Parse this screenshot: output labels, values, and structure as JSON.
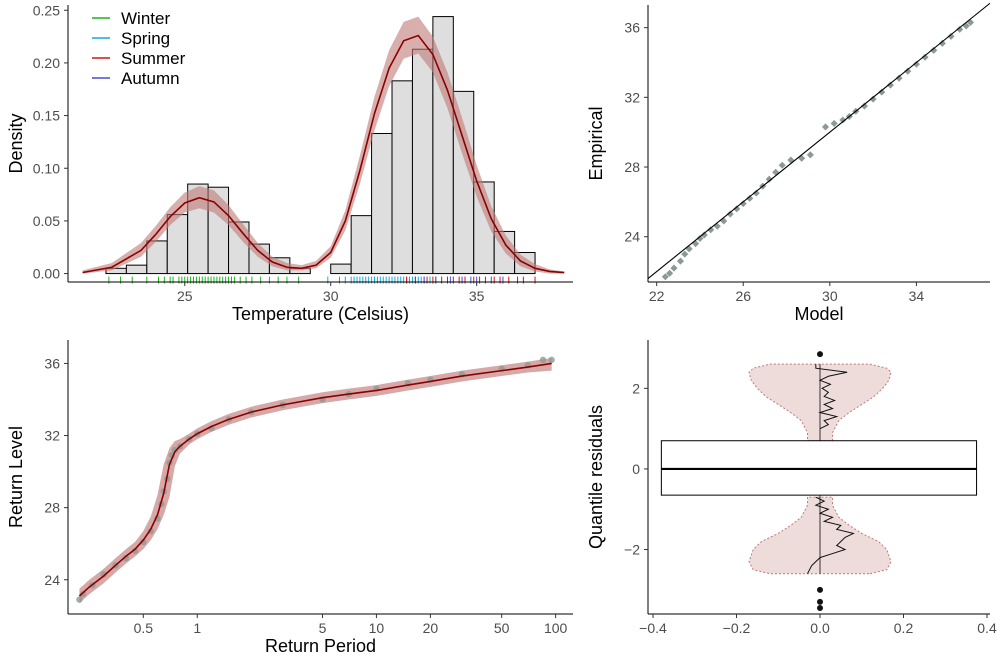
{
  "colors": {
    "winter": "#1fb21f",
    "spring": "#1aa6d8",
    "summer": "#d01717",
    "autumn": "#4a4ad8",
    "fit_line": "#8b0000",
    "band": "#c07a78",
    "bar_fill": "#dedede",
    "point": "#8c9a94"
  },
  "chart_data": [
    {
      "id": "density",
      "type": "bar",
      "xlabel": "Temperature (Celsius)",
      "ylabel": "Density",
      "xlim": [
        21.0,
        38.3
      ],
      "ylim": [
        -0.008,
        0.255
      ],
      "x_ticks": [
        25,
        30,
        35
      ],
      "y_ticks": [
        0.0,
        0.05,
        0.1,
        0.15,
        0.2,
        0.25
      ],
      "y_tick_labels": [
        "0.00",
        "0.05",
        "0.10",
        "0.15",
        "0.20",
        "0.25"
      ],
      "legend": [
        "Winter",
        "Spring",
        "Summer",
        "Autumn"
      ],
      "legend_position": "top-left",
      "histogram": {
        "bin_edges": [
          22.3,
          23.0,
          23.7,
          24.4,
          25.1,
          25.8,
          26.5,
          27.2,
          27.9,
          28.6,
          29.3,
          30.0,
          30.7,
          31.4,
          32.1,
          32.8,
          33.5,
          34.2,
          34.9,
          35.6,
          36.3,
          37.0
        ],
        "densities": [
          0.005,
          0.008,
          0.031,
          0.056,
          0.085,
          0.082,
          0.049,
          0.028,
          0.015,
          0.005,
          0.0,
          0.009,
          0.055,
          0.133,
          0.183,
          0.213,
          0.244,
          0.173,
          0.087,
          0.04,
          0.02
        ]
      },
      "density_curve": {
        "x": [
          21.5,
          22.5,
          23.5,
          24.0,
          24.5,
          25.0,
          25.5,
          26.0,
          26.5,
          27.0,
          27.5,
          28.0,
          28.5,
          29.0,
          29.5,
          30.0,
          30.5,
          31.0,
          31.5,
          32.0,
          32.5,
          33.0,
          33.5,
          34.0,
          34.5,
          35.0,
          35.5,
          36.0,
          36.5,
          37.0,
          37.5,
          38.0
        ],
        "y": [
          0.001,
          0.006,
          0.022,
          0.037,
          0.054,
          0.067,
          0.072,
          0.068,
          0.055,
          0.038,
          0.022,
          0.011,
          0.006,
          0.005,
          0.008,
          0.02,
          0.05,
          0.098,
          0.152,
          0.195,
          0.221,
          0.226,
          0.208,
          0.174,
          0.131,
          0.088,
          0.052,
          0.027,
          0.012,
          0.005,
          0.002,
          0.001
        ],
        "lower": [
          0.0,
          0.003,
          0.016,
          0.03,
          0.046,
          0.058,
          0.062,
          0.058,
          0.046,
          0.03,
          0.016,
          0.007,
          0.003,
          0.003,
          0.005,
          0.015,
          0.041,
          0.085,
          0.136,
          0.178,
          0.204,
          0.209,
          0.191,
          0.157,
          0.114,
          0.073,
          0.04,
          0.019,
          0.007,
          0.002,
          0.0,
          0.0
        ],
        "upper": [
          0.003,
          0.01,
          0.029,
          0.045,
          0.063,
          0.077,
          0.083,
          0.079,
          0.065,
          0.047,
          0.029,
          0.016,
          0.01,
          0.008,
          0.012,
          0.026,
          0.06,
          0.112,
          0.168,
          0.212,
          0.239,
          0.244,
          0.225,
          0.191,
          0.148,
          0.103,
          0.064,
          0.036,
          0.018,
          0.009,
          0.004,
          0.002
        ]
      },
      "rug": {
        "winter": [
          22.4,
          22.8,
          23.2,
          23.7,
          24.1,
          24.3,
          24.5,
          24.6,
          24.8,
          24.9,
          25.0,
          25.1,
          25.2,
          25.3,
          25.4,
          25.5,
          25.6,
          25.7,
          25.8,
          25.9,
          26.0,
          26.1,
          26.2,
          26.3,
          26.4,
          26.5,
          26.6,
          26.7,
          26.9,
          27.1,
          27.3,
          27.6,
          27.9,
          28.2,
          28.5,
          28.9
        ],
        "spring": [
          29.9,
          30.3,
          30.5,
          30.7,
          30.8,
          30.9,
          31.0,
          31.1,
          31.2,
          31.3,
          31.4,
          31.5,
          31.6,
          31.7,
          31.8,
          31.9,
          32.0,
          32.1,
          32.2,
          32.3,
          32.4,
          32.5,
          32.6,
          32.7,
          32.8,
          32.9,
          33.0,
          33.1,
          33.2,
          33.4,
          33.6
        ],
        "summer": [
          32.6,
          32.9,
          33.3,
          33.5,
          33.8,
          34.0,
          34.2,
          34.4,
          34.6,
          34.9,
          35.1,
          35.3,
          35.6,
          35.8,
          36.1,
          36.4,
          36.6,
          37.0
        ],
        "autumn": [
          33.2,
          33.6,
          34.1,
          34.5,
          34.8,
          35.0,
          35.5,
          35.9
        ]
      }
    },
    {
      "id": "qq",
      "type": "scatter",
      "xlabel": "Model",
      "ylabel": "Empirical",
      "xlim": [
        21.6,
        37.4
      ],
      "ylim": [
        21.4,
        37.3
      ],
      "x_ticks": [
        22,
        26,
        30,
        34
      ],
      "y_ticks": [
        24,
        28,
        32,
        36
      ],
      "reference_line": [
        [
          21.6,
          21.6
        ],
        [
          37.4,
          37.4
        ]
      ],
      "points": [
        [
          22.4,
          21.7
        ],
        [
          22.6,
          21.9
        ],
        [
          22.8,
          22.2
        ],
        [
          23.1,
          22.6
        ],
        [
          23.3,
          23.0
        ],
        [
          23.5,
          23.3
        ],
        [
          23.8,
          23.6
        ],
        [
          24.0,
          23.9
        ],
        [
          24.2,
          24.1
        ],
        [
          24.5,
          24.4
        ],
        [
          24.8,
          24.6
        ],
        [
          25.1,
          24.9
        ],
        [
          25.4,
          25.3
        ],
        [
          25.7,
          25.6
        ],
        [
          26.0,
          25.9
        ],
        [
          26.3,
          26.2
        ],
        [
          26.6,
          26.5
        ],
        [
          26.9,
          26.9
        ],
        [
          27.2,
          27.3
        ],
        [
          27.5,
          27.7
        ],
        [
          27.8,
          28.1
        ],
        [
          28.2,
          28.4
        ],
        [
          28.7,
          28.5
        ],
        [
          29.1,
          28.7
        ],
        [
          29.8,
          30.3
        ],
        [
          30.2,
          30.5
        ],
        [
          30.6,
          30.7
        ],
        [
          30.9,
          30.9
        ],
        [
          31.2,
          31.2
        ],
        [
          31.6,
          31.5
        ],
        [
          32.0,
          31.9
        ],
        [
          32.4,
          32.3
        ],
        [
          32.8,
          32.7
        ],
        [
          33.2,
          33.1
        ],
        [
          33.6,
          33.5
        ],
        [
          34.0,
          33.9
        ],
        [
          34.4,
          34.3
        ],
        [
          34.8,
          34.7
        ],
        [
          35.2,
          35.1
        ],
        [
          35.6,
          35.5
        ],
        [
          36.0,
          35.9
        ],
        [
          36.3,
          36.1
        ],
        [
          36.5,
          36.3
        ]
      ]
    },
    {
      "id": "return-level",
      "type": "line",
      "xlabel": "Return Period",
      "ylabel": "Return Level",
      "x_log": true,
      "xlim": [
        0.19,
        125
      ],
      "ylim": [
        22.1,
        37.3
      ],
      "x_ticks": [
        0.5,
        1,
        5,
        10,
        20,
        50,
        100
      ],
      "y_ticks": [
        24,
        28,
        32,
        36
      ],
      "curve": {
        "x": [
          0.22,
          0.25,
          0.3,
          0.35,
          0.4,
          0.45,
          0.5,
          0.55,
          0.6,
          0.65,
          0.7,
          0.75,
          0.8,
          0.9,
          1.0,
          1.2,
          1.5,
          2.0,
          3.0,
          5.0,
          7.0,
          10.0,
          15.0,
          20.0,
          30.0,
          50.0,
          70.0,
          95.0
        ],
        "y": [
          23.1,
          23.6,
          24.2,
          24.8,
          25.3,
          25.7,
          26.2,
          26.8,
          27.6,
          28.8,
          30.4,
          31.1,
          31.4,
          31.8,
          32.1,
          32.5,
          32.9,
          33.3,
          33.7,
          34.1,
          34.3,
          34.5,
          34.8,
          35.0,
          35.3,
          35.6,
          35.8,
          36.0
        ],
        "lower": [
          22.7,
          23.2,
          23.8,
          24.4,
          24.9,
          25.3,
          25.7,
          26.2,
          26.8,
          27.6,
          28.6,
          30.3,
          31.0,
          31.5,
          31.8,
          32.2,
          32.6,
          33.0,
          33.4,
          33.8,
          34.0,
          34.2,
          34.5,
          34.7,
          35.0,
          35.3,
          35.5,
          35.6
        ],
        "upper": [
          23.5,
          24.0,
          24.6,
          25.2,
          25.7,
          26.1,
          26.7,
          27.5,
          28.7,
          30.4,
          31.3,
          31.7,
          31.8,
          32.1,
          32.4,
          32.8,
          33.2,
          33.6,
          34.0,
          34.4,
          34.6,
          34.8,
          35.1,
          35.3,
          35.6,
          35.9,
          36.1,
          36.3
        ]
      },
      "points": [
        [
          0.22,
          22.9
        ],
        [
          0.23,
          23.2
        ],
        [
          0.26,
          23.7
        ],
        [
          0.3,
          24.3
        ],
        [
          0.35,
          24.8
        ],
        [
          0.4,
          25.2
        ],
        [
          0.45,
          25.6
        ],
        [
          0.5,
          26.1
        ],
        [
          0.55,
          26.7
        ],
        [
          0.6,
          27.4
        ],
        [
          0.63,
          28.2
        ],
        [
          0.65,
          28.9
        ],
        [
          0.68,
          29.6
        ],
        [
          0.7,
          30.5
        ],
        [
          0.72,
          30.9
        ],
        [
          0.75,
          31.2
        ],
        [
          0.8,
          31.4
        ],
        [
          0.9,
          31.8
        ],
        [
          1.0,
          32.1
        ],
        [
          1.2,
          32.4
        ],
        [
          1.5,
          32.9
        ],
        [
          2.0,
          33.3
        ],
        [
          3.0,
          33.7
        ],
        [
          5.0,
          34.0
        ],
        [
          7.0,
          34.3
        ],
        [
          10.0,
          34.6
        ],
        [
          15.0,
          34.9
        ],
        [
          20.0,
          35.1
        ],
        [
          30.0,
          35.4
        ],
        [
          50.0,
          35.7
        ],
        [
          70.0,
          35.9
        ],
        [
          85.0,
          36.2
        ],
        [
          95.0,
          36.2
        ]
      ]
    },
    {
      "id": "residuals",
      "type": "scatter",
      "ylabel": "Quantile residuals",
      "xlim": [
        -0.4,
        0.4
      ],
      "ylim": [
        -3.6,
        3.2
      ],
      "x_ticks": [
        -0.4,
        -0.2,
        0.0,
        0.2,
        0.4
      ],
      "x_tick_labels": [
        "−0.4",
        "−0.2",
        "0.0",
        "0.2",
        "0.4"
      ],
      "y_ticks": [
        -2,
        0,
        2
      ],
      "y_tick_labels": [
        "−2",
        "0",
        "2"
      ],
      "box": {
        "x_min": -0.38,
        "x_max": 0.375,
        "q1": -0.65,
        "median": 0.0,
        "q3": 0.7
      },
      "whiskers": [
        -2.6,
        2.6
      ],
      "outliers": [
        [
          0.0,
          2.85
        ],
        [
          0.0,
          -3.0
        ],
        [
          0.0,
          -3.3
        ],
        [
          0.0,
          -3.45
        ]
      ],
      "violin": {
        "y": [
          -2.6,
          -2.5,
          -2.3,
          -2.0,
          -1.8,
          -1.6,
          -1.4,
          -1.2,
          -1.0,
          -0.9,
          -0.8,
          -0.7,
          0.7,
          0.8,
          0.9,
          1.0,
          1.2,
          1.4,
          1.6,
          1.8,
          2.0,
          2.2,
          2.4,
          2.5,
          2.6
        ],
        "halfwidth": [
          0.12,
          0.16,
          0.17,
          0.16,
          0.14,
          0.1,
          0.07,
          0.045,
          0.035,
          0.03,
          0.03,
          0.03,
          0.03,
          0.03,
          0.03,
          0.035,
          0.045,
          0.07,
          0.1,
          0.13,
          0.15,
          0.165,
          0.17,
          0.16,
          0.12
        ]
      },
      "residual_trace": {
        "top": {
          "y": [
            2.6,
            2.5,
            2.4,
            2.3,
            2.2,
            2.1,
            2.0,
            1.9,
            1.8,
            1.7,
            1.6,
            1.5,
            1.4,
            1.3,
            1.2,
            1.1,
            1.0
          ],
          "x": [
            -0.01,
            -0.01,
            0.065,
            0.02,
            0.0,
            0.025,
            0.005,
            0.02,
            0.01,
            0.035,
            0.01,
            0.03,
            0.0,
            0.04,
            0.01,
            0.02,
            0.0
          ]
        },
        "bottom": {
          "y": [
            -0.7,
            -0.8,
            -0.9,
            -1.0,
            -1.1,
            -1.2,
            -1.3,
            -1.4,
            -1.5,
            -1.6,
            -1.7,
            -1.8,
            -1.9,
            -2.0,
            -2.1,
            -2.2,
            -2.4,
            -2.6
          ],
          "x": [
            -0.01,
            0.01,
            -0.01,
            0.02,
            0.0,
            0.03,
            0.01,
            0.05,
            0.04,
            0.08,
            0.06,
            0.05,
            0.04,
            0.06,
            0.03,
            0.0,
            -0.02,
            -0.03
          ]
        }
      }
    }
  ]
}
